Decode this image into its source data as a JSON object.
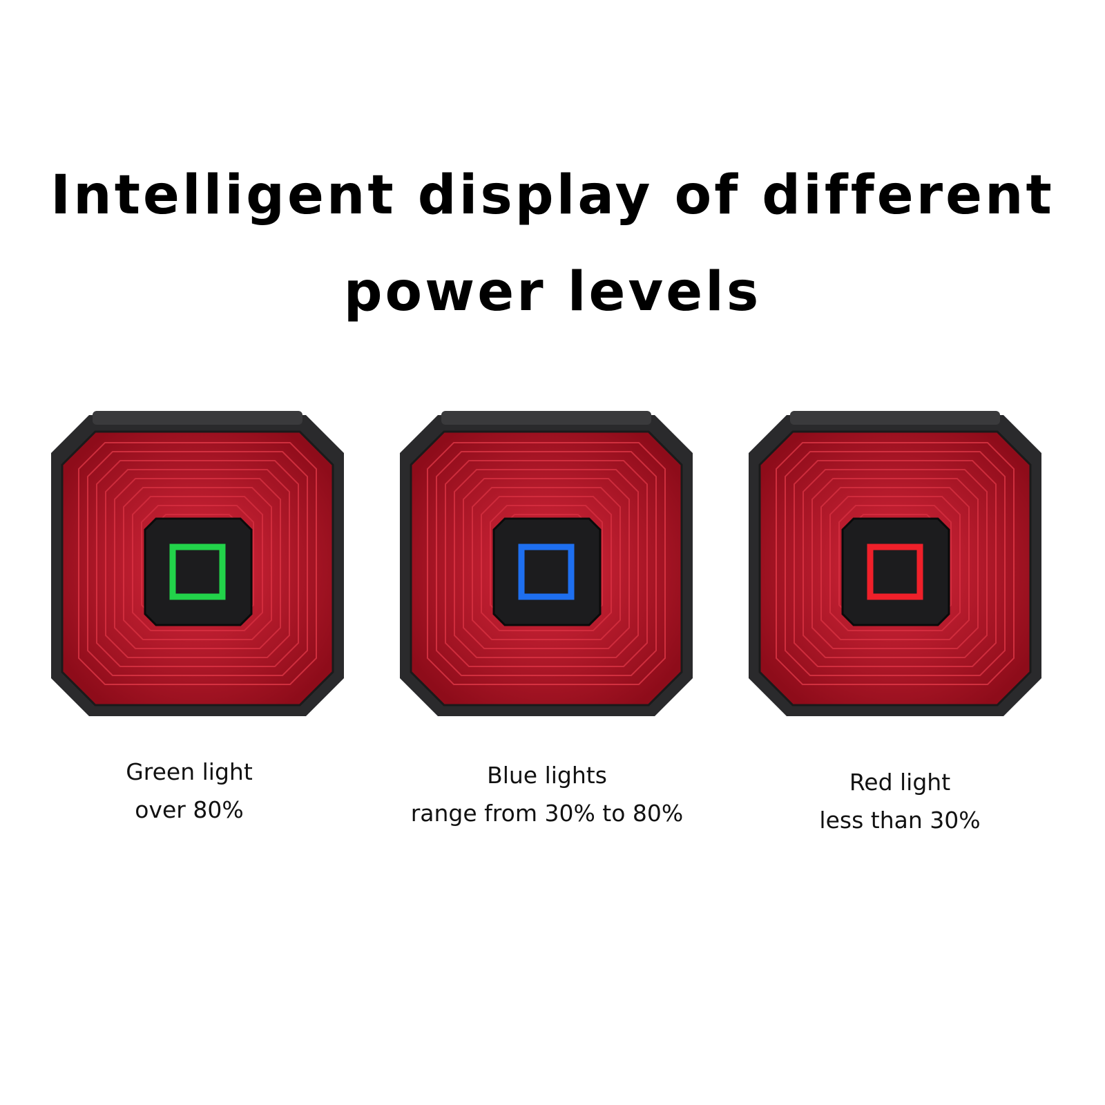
{
  "title": {
    "line1": "Intelligent display of different",
    "line2": "power levels"
  },
  "lens_color": "#c0182a",
  "housing_color": "#2a2a2c",
  "lights": [
    {
      "indicator": "green",
      "indicator_color": "#22d34a",
      "caption_line1": "Green light",
      "caption_line2": "over 80%"
    },
    {
      "indicator": "blue",
      "indicator_color": "#1e6ff0",
      "caption_line1": "Blue lights",
      "caption_line2": "range from 30% to 80%"
    },
    {
      "indicator": "red",
      "indicator_color": "#f0202a",
      "caption_line1": "Red light",
      "caption_line2": "less than 30%"
    }
  ]
}
